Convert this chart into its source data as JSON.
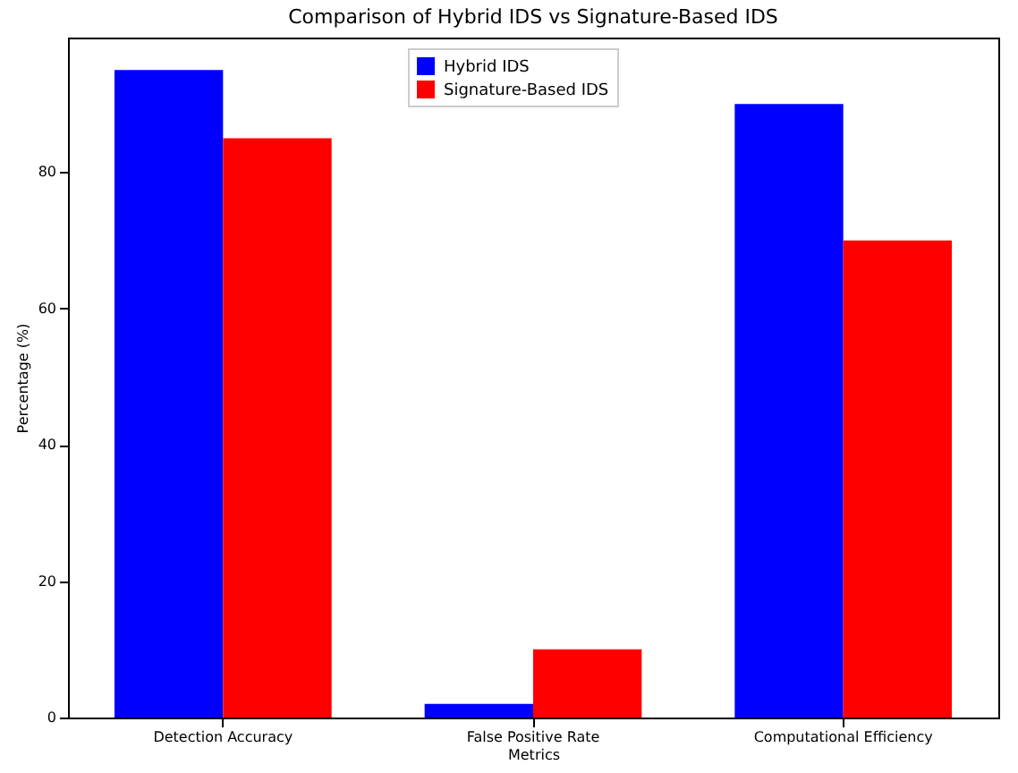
{
  "chart_data": {
    "type": "bar",
    "title": "Comparison of Hybrid IDS vs Signature-Based IDS",
    "xlabel": "Metrics",
    "ylabel": "Percentage (%)",
    "categories": [
      "Detection Accuracy",
      "False Positive Rate",
      "Computational Efficiency"
    ],
    "series": [
      {
        "name": "Hybrid IDS",
        "color": "#0000ff",
        "values": [
          95,
          2,
          90
        ]
      },
      {
        "name": "Signature-Based IDS",
        "color": "#ff0000",
        "values": [
          85,
          10,
          70
        ]
      }
    ],
    "ylim": [
      0,
      99.75
    ],
    "yticks": [
      0,
      20,
      40,
      60,
      80
    ],
    "grid": false,
    "legend": "top"
  }
}
